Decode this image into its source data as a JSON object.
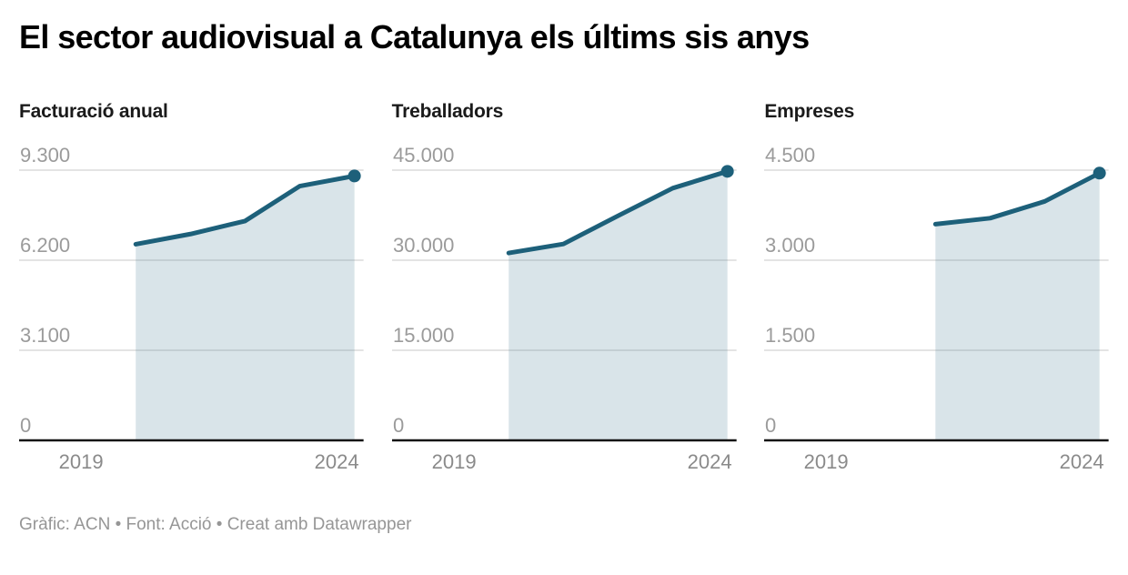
{
  "title": "El sector audiovisual a Catalunya els últims sis anys",
  "footer": "Gràfic: ACN • Font: Acció • Creat amb Datawrapper",
  "colors": {
    "line": "#1d607a",
    "area": "rgba(29, 96, 122, 0.17)",
    "gridline": "#dcdcdc",
    "axis_baseline": "#141414",
    "y_tick_label": "#9b9b9b",
    "x_tick_label": "#8a8a8a",
    "title": "#000000",
    "panel_title": "#1a1a1a",
    "footer": "#969696"
  },
  "x_axis": {
    "tick_labels": [
      "2019",
      "2024"
    ],
    "first_year": 2019,
    "last_year": 2024
  },
  "chart_data": [
    {
      "type": "area",
      "title": "Facturació anual",
      "x": [
        2020,
        2021,
        2022,
        2023,
        2024
      ],
      "values": [
        6750,
        7100,
        7550,
        8750,
        9100
      ],
      "y_ticks": [
        0,
        3100,
        6200,
        9300
      ],
      "y_tick_labels": [
        "0",
        "3.100",
        "6.200",
        "9.300"
      ],
      "ylim": [
        0,
        9300
      ],
      "x_tick_labels": [
        "2019",
        "2024"
      ],
      "grid": true,
      "end_point_marker": true
    },
    {
      "type": "area",
      "title": "Treballadors",
      "x": [
        2020,
        2021,
        2022,
        2023,
        2024
      ],
      "values": [
        31200,
        32700,
        37400,
        42000,
        44800
      ],
      "y_ticks": [
        0,
        15000,
        30000,
        45000
      ],
      "y_tick_labels": [
        "0",
        "15.000",
        "30.000",
        "45.000"
      ],
      "ylim": [
        0,
        45000
      ],
      "x_tick_labels": [
        "2019",
        "2024"
      ],
      "grid": true,
      "end_point_marker": true
    },
    {
      "type": "area",
      "title": "Empreses",
      "x": [
        2021,
        2022,
        2023,
        2024
      ],
      "values": [
        3600,
        3700,
        3980,
        4450
      ],
      "y_ticks": [
        0,
        1500,
        3000,
        4500
      ],
      "y_tick_labels": [
        "0",
        "1.500",
        "3.000",
        "4.500"
      ],
      "ylim": [
        0,
        4500
      ],
      "x_tick_labels": [
        "2019",
        "2024"
      ],
      "grid": true,
      "end_point_marker": true
    }
  ]
}
